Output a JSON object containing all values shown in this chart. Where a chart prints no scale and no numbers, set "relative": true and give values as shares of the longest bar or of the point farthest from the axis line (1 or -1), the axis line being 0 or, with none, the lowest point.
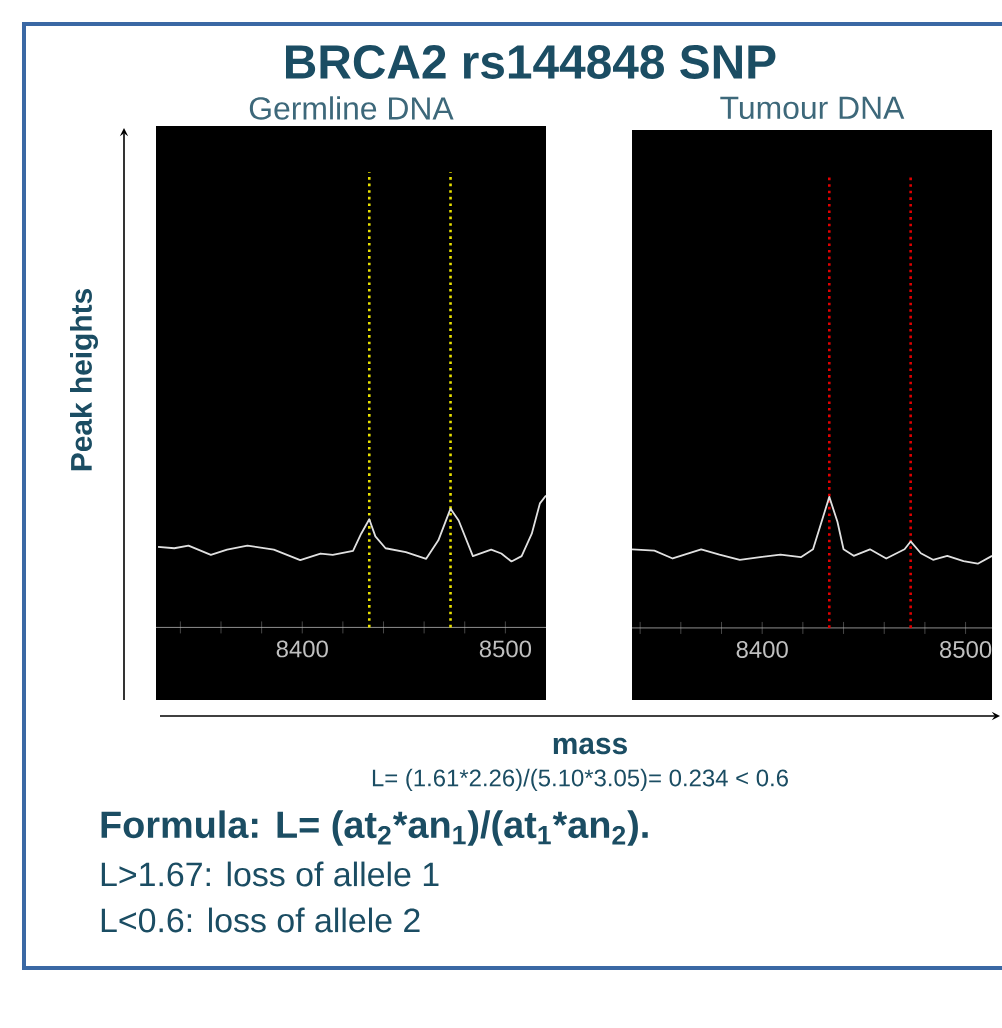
{
  "chart_data": [
    {
      "type": "line",
      "title": "BRCA2  rs144848 SNP",
      "subtitle": "Germline DNA",
      "ylabel": "Peak heights",
      "xlabel": "mass",
      "annotations": [
        "L= (1.61*2.26)/(5.10*3.05)=   0.234  < 0.6",
        "Formula: L= (at$_{2}$*an$_{1}$)/(at$_{1}$*an$_{2}$).",
        "L>1.67: loss of allele 1",
        "L<0.6: loss of allele 2"
      ],
      "relative": true,
      "x": [
        8329,
        8337,
        8344,
        8355,
        8363,
        8373,
        8386,
        8399,
        8409,
        8415,
        8425,
        8429,
        8433,
        8436,
        8441,
        8451,
        8461,
        8467,
        8473,
        8477,
        8484,
        8493,
        8498,
        8503,
        8508,
        8513,
        8517,
        8520
      ],
      "series": [
        {
          "color": "#e0e0e0",
          "values": [
            0.61,
            0.6,
            0.62,
            0.55,
            0.59,
            0.62,
            0.59,
            0.51,
            0.56,
            0.55,
            0.58,
            0.71,
            0.82,
            0.69,
            0.6,
            0.57,
            0.52,
            0.66,
            0.9,
            0.81,
            0.54,
            0.59,
            0.56,
            0.5,
            0.54,
            0.71,
            0.94,
            1.0
          ]
        }
      ],
      "xlim": [
        8328,
        8520
      ],
      "xticks": [
        {
          "value": 8340,
          "label": null
        },
        {
          "value": 8360,
          "label": null
        },
        {
          "value": 8380,
          "label": null
        },
        8400,
        {
          "value": 8420,
          "label": null
        },
        {
          "value": 8440,
          "label": null
        },
        {
          "value": 8460,
          "label": null
        },
        {
          "value": 8480,
          "label": null
        },
        8500
      ],
      "ref_lines": [
        {
          "axis": "x",
          "value": 8433,
          "color": "#e8e000",
          "line_style": "dotted"
        },
        {
          "axis": "x",
          "value": 8473,
          "color": "#e8e000",
          "line_style": "dotted"
        }
      ]
    },
    {
      "type": "line",
      "subtitle": "Tumour DNA",
      "relative": true,
      "x": [
        8336,
        8347,
        8356,
        8370,
        8379,
        8389,
        8399,
        8409,
        8419,
        8425,
        8430,
        8433,
        8437,
        8440,
        8445,
        8453,
        8461,
        8470,
        8473,
        8478,
        8484,
        8491,
        8499,
        8506,
        8513
      ],
      "series": [
        {
          "color": "#e0e0e0",
          "values": [
            0.6,
            0.59,
            0.53,
            0.6,
            0.56,
            0.52,
            0.54,
            0.56,
            0.54,
            0.6,
            0.85,
            1.0,
            0.81,
            0.6,
            0.55,
            0.6,
            0.53,
            0.6,
            0.66,
            0.57,
            0.52,
            0.55,
            0.51,
            0.49,
            0.55
          ]
        }
      ],
      "xlim": [
        8336,
        8513
      ],
      "xticks": [
        {
          "value": 8340,
          "label": null
        },
        {
          "value": 8360,
          "label": null
        },
        {
          "value": 8380,
          "label": null
        },
        8400,
        {
          "value": 8420,
          "label": null
        },
        {
          "value": 8440,
          "label": null
        },
        {
          "value": 8460,
          "label": null
        },
        {
          "value": 8480,
          "label": null
        },
        8500
      ],
      "ref_lines": [
        {
          "axis": "x",
          "value": 8433,
          "color": "#e00000",
          "line_style": "dotted"
        },
        {
          "axis": "x",
          "value": 8473,
          "color": "#e00000",
          "line_style": "dotted"
        }
      ]
    }
  ]
}
